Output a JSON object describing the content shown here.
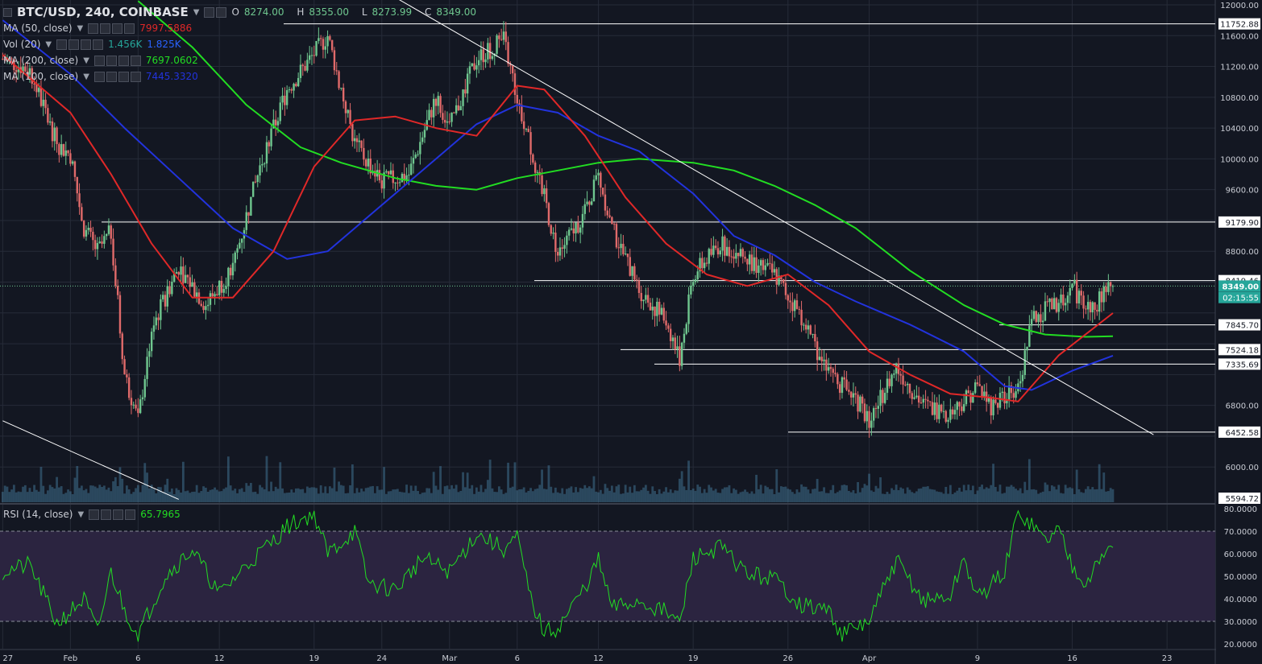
{
  "header": {
    "symbol": "BTC/USD, 240, COINBASE",
    "o_label": "O",
    "o": "8274.00",
    "h_label": "H",
    "h": "8355.00",
    "l_label": "L",
    "l": "8273.99",
    "c_label": "C",
    "c": "8349.00"
  },
  "indicators": [
    {
      "label": "MA (50, close)",
      "value": "7997.5886",
      "color": "#e02828"
    },
    {
      "label": "Vol (20)",
      "value": "1.456K",
      "value2": "1.825K",
      "color": "#26a69a",
      "color2": "#2962ff"
    },
    {
      "label": "MA (200, close)",
      "value": "7697.0602",
      "color": "#22dd22"
    },
    {
      "label": "MA (100, close)",
      "value": "7445.3320",
      "color": "#2233dd"
    }
  ],
  "rsi": {
    "label": "RSI (14, close)",
    "value": "65.7965",
    "color": "#22dd22"
  },
  "colors": {
    "background": "#131722",
    "grid": "#262b38",
    "up": "#6fc78f",
    "down": "#e06a6a",
    "ma50": "#e02828",
    "ma100": "#2233dd",
    "ma200": "#22dd22",
    "volume": "#4a86a8",
    "rsi": "#22dd22",
    "rsi_band": "#2b2440",
    "lines": "#ffffff"
  },
  "chart_data": [
    {
      "type": "candlestick",
      "title": "BTC/USD, 240, COINBASE",
      "x_ticks": [
        "27",
        "Feb",
        "6",
        "12",
        "19",
        "24",
        "Mar",
        "6",
        "12",
        "19",
        "26",
        "Apr",
        "9",
        "16",
        "23"
      ],
      "y_ticks": [
        "12000.00",
        "11600.00",
        "11200.00",
        "10800.00",
        "10400.00",
        "10000.00",
        "9600.00",
        "8800.00",
        "6800.00",
        "6000.00"
      ],
      "ylim": [
        5594.72,
        12000
      ],
      "price_labels": [
        {
          "label": "11752.88",
          "value": 11752.88
        },
        {
          "label": "9179.90",
          "value": 9179.9
        },
        {
          "label": "8419.46",
          "value": 8419.46
        },
        {
          "label": "8349.00",
          "value": 8349.0,
          "current": true
        },
        {
          "label": "02:15:55",
          "value": 8200,
          "timer": true
        },
        {
          "label": "7845.70",
          "value": 7845.7
        },
        {
          "label": "7524.18",
          "value": 7524.18
        },
        {
          "label": "7335.69",
          "value": 7335.69
        },
        {
          "label": "6452.58",
          "value": 6452.58
        },
        {
          "label": "5594.72",
          "value": 5594.72
        }
      ],
      "horizontal_lines": [
        11752.88,
        9179.9,
        8419.46,
        7845.7,
        7524.18,
        7335.69,
        6452.58
      ],
      "price_path": [
        {
          "d": "Jan 27",
          "p": 11300
        },
        {
          "d": "Jan 29",
          "p": 11150
        },
        {
          "d": "Jan 31",
          "p": 10200
        },
        {
          "d": "Feb 1",
          "p": 10050
        },
        {
          "d": "Feb 2",
          "p": 9100
        },
        {
          "d": "Feb 3",
          "p": 8800
        },
        {
          "d": "Feb 4",
          "p": 9050
        },
        {
          "d": "Feb 5",
          "p": 7200
        },
        {
          "d": "Feb 6",
          "p": 6600
        },
        {
          "d": "Feb 7",
          "p": 7800
        },
        {
          "d": "Feb 9",
          "p": 8600
        },
        {
          "d": "Feb 11",
          "p": 8100
        },
        {
          "d": "Feb 13",
          "p": 8600
        },
        {
          "d": "Feb 15",
          "p": 9900
        },
        {
          "d": "Feb 17",
          "p": 10900
        },
        {
          "d": "Feb 20",
          "p": 11600
        },
        {
          "d": "Feb 22",
          "p": 10200
        },
        {
          "d": "Feb 24",
          "p": 9700
        },
        {
          "d": "Feb 26",
          "p": 9800
        },
        {
          "d": "Feb 28",
          "p": 10800
        },
        {
          "d": "Mar 1",
          "p": 10400
        },
        {
          "d": "Mar 3",
          "p": 11300
        },
        {
          "d": "Mar 5",
          "p": 11550
        },
        {
          "d": "Mar 6",
          "p": 10800
        },
        {
          "d": "Mar 8",
          "p": 9500
        },
        {
          "d": "Mar 9",
          "p": 8750
        },
        {
          "d": "Mar 11",
          "p": 9300
        },
        {
          "d": "Mar 12",
          "p": 9800
        },
        {
          "d": "Mar 13",
          "p": 9100
        },
        {
          "d": "Mar 15",
          "p": 8300
        },
        {
          "d": "Mar 17",
          "p": 7900
        },
        {
          "d": "Mar 18",
          "p": 7400
        },
        {
          "d": "Mar 19",
          "p": 8500
        },
        {
          "d": "Mar 21",
          "p": 8900
        },
        {
          "d": "Mar 23",
          "p": 8700
        },
        {
          "d": "Mar 25",
          "p": 8500
        },
        {
          "d": "Mar 27",
          "p": 7950
        },
        {
          "d": "Mar 29",
          "p": 7200
        },
        {
          "d": "Mar 31",
          "p": 6900
        },
        {
          "d": "Apr 1",
          "p": 6600
        },
        {
          "d": "Apr 3",
          "p": 7300
        },
        {
          "d": "Apr 5",
          "p": 6800
        },
        {
          "d": "Apr 7",
          "p": 6700
        },
        {
          "d": "Apr 9",
          "p": 7050
        },
        {
          "d": "Apr 10",
          "p": 6800
        },
        {
          "d": "Apr 12",
          "p": 7000
        },
        {
          "d": "Apr 13",
          "p": 7900
        },
        {
          "d": "Apr 14",
          "p": 8050
        },
        {
          "d": "Apr 15",
          "p": 8100
        },
        {
          "d": "Apr 16",
          "p": 8350
        },
        {
          "d": "Apr 17",
          "p": 8050
        },
        {
          "d": "Apr 18",
          "p": 8150
        },
        {
          "d": "Apr 19",
          "p": 8349
        }
      ],
      "ma50": [
        {
          "d": "Jan 27",
          "p": 11350
        },
        {
          "d": "Feb 1",
          "p": 10600
        },
        {
          "d": "Feb 4",
          "p": 9800
        },
        {
          "d": "Feb 7",
          "p": 8900
        },
        {
          "d": "Feb 10",
          "p": 8200
        },
        {
          "d": "Feb 13",
          "p": 8200
        },
        {
          "d": "Feb 16",
          "p": 8800
        },
        {
          "d": "Feb 19",
          "p": 9900
        },
        {
          "d": "Feb 22",
          "p": 10500
        },
        {
          "d": "Feb 25",
          "p": 10550
        },
        {
          "d": "Feb 28",
          "p": 10400
        },
        {
          "d": "Mar 3",
          "p": 10300
        },
        {
          "d": "Mar 6",
          "p": 10950
        },
        {
          "d": "Mar 8",
          "p": 10900
        },
        {
          "d": "Mar 11",
          "p": 10300
        },
        {
          "d": "Mar 14",
          "p": 9500
        },
        {
          "d": "Mar 17",
          "p": 8900
        },
        {
          "d": "Mar 20",
          "p": 8500
        },
        {
          "d": "Mar 23",
          "p": 8350
        },
        {
          "d": "Mar 26",
          "p": 8500
        },
        {
          "d": "Mar 29",
          "p": 8100
        },
        {
          "d": "Apr 1",
          "p": 7500
        },
        {
          "d": "Apr 4",
          "p": 7200
        },
        {
          "d": "Apr 7",
          "p": 6950
        },
        {
          "d": "Apr 10",
          "p": 6900
        },
        {
          "d": "Apr 12",
          "p": 6850
        },
        {
          "d": "Apr 15",
          "p": 7450
        },
        {
          "d": "Apr 19",
          "p": 7997.59
        }
      ],
      "ma100": [
        {
          "d": "Jan 27",
          "p": 11800
        },
        {
          "d": "Feb 1",
          "p": 11100
        },
        {
          "d": "Feb 5",
          "p": 10400
        },
        {
          "d": "Feb 9",
          "p": 9750
        },
        {
          "d": "Feb 13",
          "p": 9100
        },
        {
          "d": "Feb 17",
          "p": 8700
        },
        {
          "d": "Feb 20",
          "p": 8800
        },
        {
          "d": "Feb 24",
          "p": 9400
        },
        {
          "d": "Feb 28",
          "p": 10000
        },
        {
          "d": "Mar 3",
          "p": 10450
        },
        {
          "d": "Mar 6",
          "p": 10700
        },
        {
          "d": "Mar 9",
          "p": 10600
        },
        {
          "d": "Mar 12",
          "p": 10300
        },
        {
          "d": "Mar 15",
          "p": 10100
        },
        {
          "d": "Mar 19",
          "p": 9550
        },
        {
          "d": "Mar 22",
          "p": 9000
        },
        {
          "d": "Mar 25",
          "p": 8750
        },
        {
          "d": "Mar 28",
          "p": 8400
        },
        {
          "d": "Mar 31",
          "p": 8150
        },
        {
          "d": "Apr 4",
          "p": 7850
        },
        {
          "d": "Apr 8",
          "p": 7500
        },
        {
          "d": "Apr 11",
          "p": 7050
        },
        {
          "d": "Apr 13",
          "p": 7000
        },
        {
          "d": "Apr 16",
          "p": 7250
        },
        {
          "d": "Apr 19",
          "p": 7445.33
        }
      ],
      "ma200": [
        {
          "d": "Feb 6",
          "p": 12050
        },
        {
          "d": "Feb 10",
          "p": 11450
        },
        {
          "d": "Feb 14",
          "p": 10700
        },
        {
          "d": "Feb 18",
          "p": 10150
        },
        {
          "d": "Feb 21",
          "p": 9950
        },
        {
          "d": "Feb 25",
          "p": 9750
        },
        {
          "d": "Feb 28",
          "p": 9650
        },
        {
          "d": "Mar 3",
          "p": 9600
        },
        {
          "d": "Mar 6",
          "p": 9750
        },
        {
          "d": "Mar 9",
          "p": 9850
        },
        {
          "d": "Mar 12",
          "p": 9950
        },
        {
          "d": "Mar 15",
          "p": 10000
        },
        {
          "d": "Mar 19",
          "p": 9950
        },
        {
          "d": "Mar 22",
          "p": 9850
        },
        {
          "d": "Mar 25",
          "p": 9650
        },
        {
          "d": "Mar 28",
          "p": 9400
        },
        {
          "d": "Mar 31",
          "p": 9100
        },
        {
          "d": "Apr 4",
          "p": 8550
        },
        {
          "d": "Apr 8",
          "p": 8100
        },
        {
          "d": "Apr 11",
          "p": 7850
        },
        {
          "d": "Apr 14",
          "p": 7720
        },
        {
          "d": "Apr 17",
          "p": 7690
        },
        {
          "d": "Apr 19",
          "p": 7697.06
        }
      ],
      "trendlines": [
        {
          "from": {
            "d": "Feb 22",
            "p": 12400
          },
          "to": {
            "d": "Apr 22",
            "p": 6420
          }
        },
        {
          "from": {
            "d": "Jan 27",
            "p": 6600
          },
          "to": {
            "d": "Feb 9",
            "p": 5580
          }
        }
      ]
    },
    {
      "type": "line",
      "title": "RSI (14, close)",
      "ylim": [
        20,
        80
      ],
      "y_ticks": [
        "80.0000",
        "70.0000",
        "60.0000",
        "50.0000",
        "40.0000",
        "30.0000",
        "20.0000"
      ],
      "bands": [
        30,
        70
      ],
      "last": 65.7965,
      "values": [
        {
          "d": "Jan 27",
          "p": 52
        },
        {
          "d": "Jan 29",
          "p": 55
        },
        {
          "d": "Jan 31",
          "p": 29
        },
        {
          "d": "Feb 2",
          "p": 40
        },
        {
          "d": "Feb 3",
          "p": 25
        },
        {
          "d": "Feb 4",
          "p": 52
        },
        {
          "d": "Feb 5",
          "p": 35
        },
        {
          "d": "Feb 6",
          "p": 24
        },
        {
          "d": "Feb 8",
          "p": 50
        },
        {
          "d": "Feb 10",
          "p": 62
        },
        {
          "d": "Feb 12",
          "p": 42
        },
        {
          "d": "Feb 14",
          "p": 55
        },
        {
          "d": "Feb 16",
          "p": 66
        },
        {
          "d": "Feb 17",
          "p": 72
        },
        {
          "d": "Feb 19",
          "p": 78
        },
        {
          "d": "Feb 20",
          "p": 60
        },
        {
          "d": "Feb 22",
          "p": 70
        },
        {
          "d": "Feb 23",
          "p": 47
        },
        {
          "d": "Feb 25",
          "p": 44
        },
        {
          "d": "Feb 27",
          "p": 58
        },
        {
          "d": "Mar 1",
          "p": 52
        },
        {
          "d": "Mar 3",
          "p": 69
        },
        {
          "d": "Mar 5",
          "p": 62
        },
        {
          "d": "Mar 6",
          "p": 67
        },
        {
          "d": "Mar 7",
          "p": 40
        },
        {
          "d": "Mar 8",
          "p": 25
        },
        {
          "d": "Mar 9",
          "p": 27
        },
        {
          "d": "Mar 11",
          "p": 45
        },
        {
          "d": "Mar 12",
          "p": 57
        },
        {
          "d": "Mar 13",
          "p": 36
        },
        {
          "d": "Mar 15",
          "p": 39
        },
        {
          "d": "Mar 17",
          "p": 34
        },
        {
          "d": "Mar 18",
          "p": 29
        },
        {
          "d": "Mar 19",
          "p": 58
        },
        {
          "d": "Mar 21",
          "p": 63
        },
        {
          "d": "Mar 23",
          "p": 51
        },
        {
          "d": "Mar 25",
          "p": 49
        },
        {
          "d": "Mar 27",
          "p": 37
        },
        {
          "d": "Mar 29",
          "p": 35
        },
        {
          "d": "Mar 30",
          "p": 24
        },
        {
          "d": "Apr 1",
          "p": 30
        },
        {
          "d": "Apr 3",
          "p": 57
        },
        {
          "d": "Apr 5",
          "p": 39
        },
        {
          "d": "Apr 7",
          "p": 41
        },
        {
          "d": "Apr 8",
          "p": 58
        },
        {
          "d": "Apr 9",
          "p": 40
        },
        {
          "d": "Apr 11",
          "p": 52
        },
        {
          "d": "Apr 12",
          "p": 79
        },
        {
          "d": "Apr 13",
          "p": 73
        },
        {
          "d": "Apr 14",
          "p": 66
        },
        {
          "d": "Apr 15",
          "p": 71
        },
        {
          "d": "Apr 16",
          "p": 55
        },
        {
          "d": "Apr 17",
          "p": 48
        },
        {
          "d": "Apr 18",
          "p": 56
        },
        {
          "d": "Apr 19",
          "p": 65.8
        }
      ]
    }
  ]
}
